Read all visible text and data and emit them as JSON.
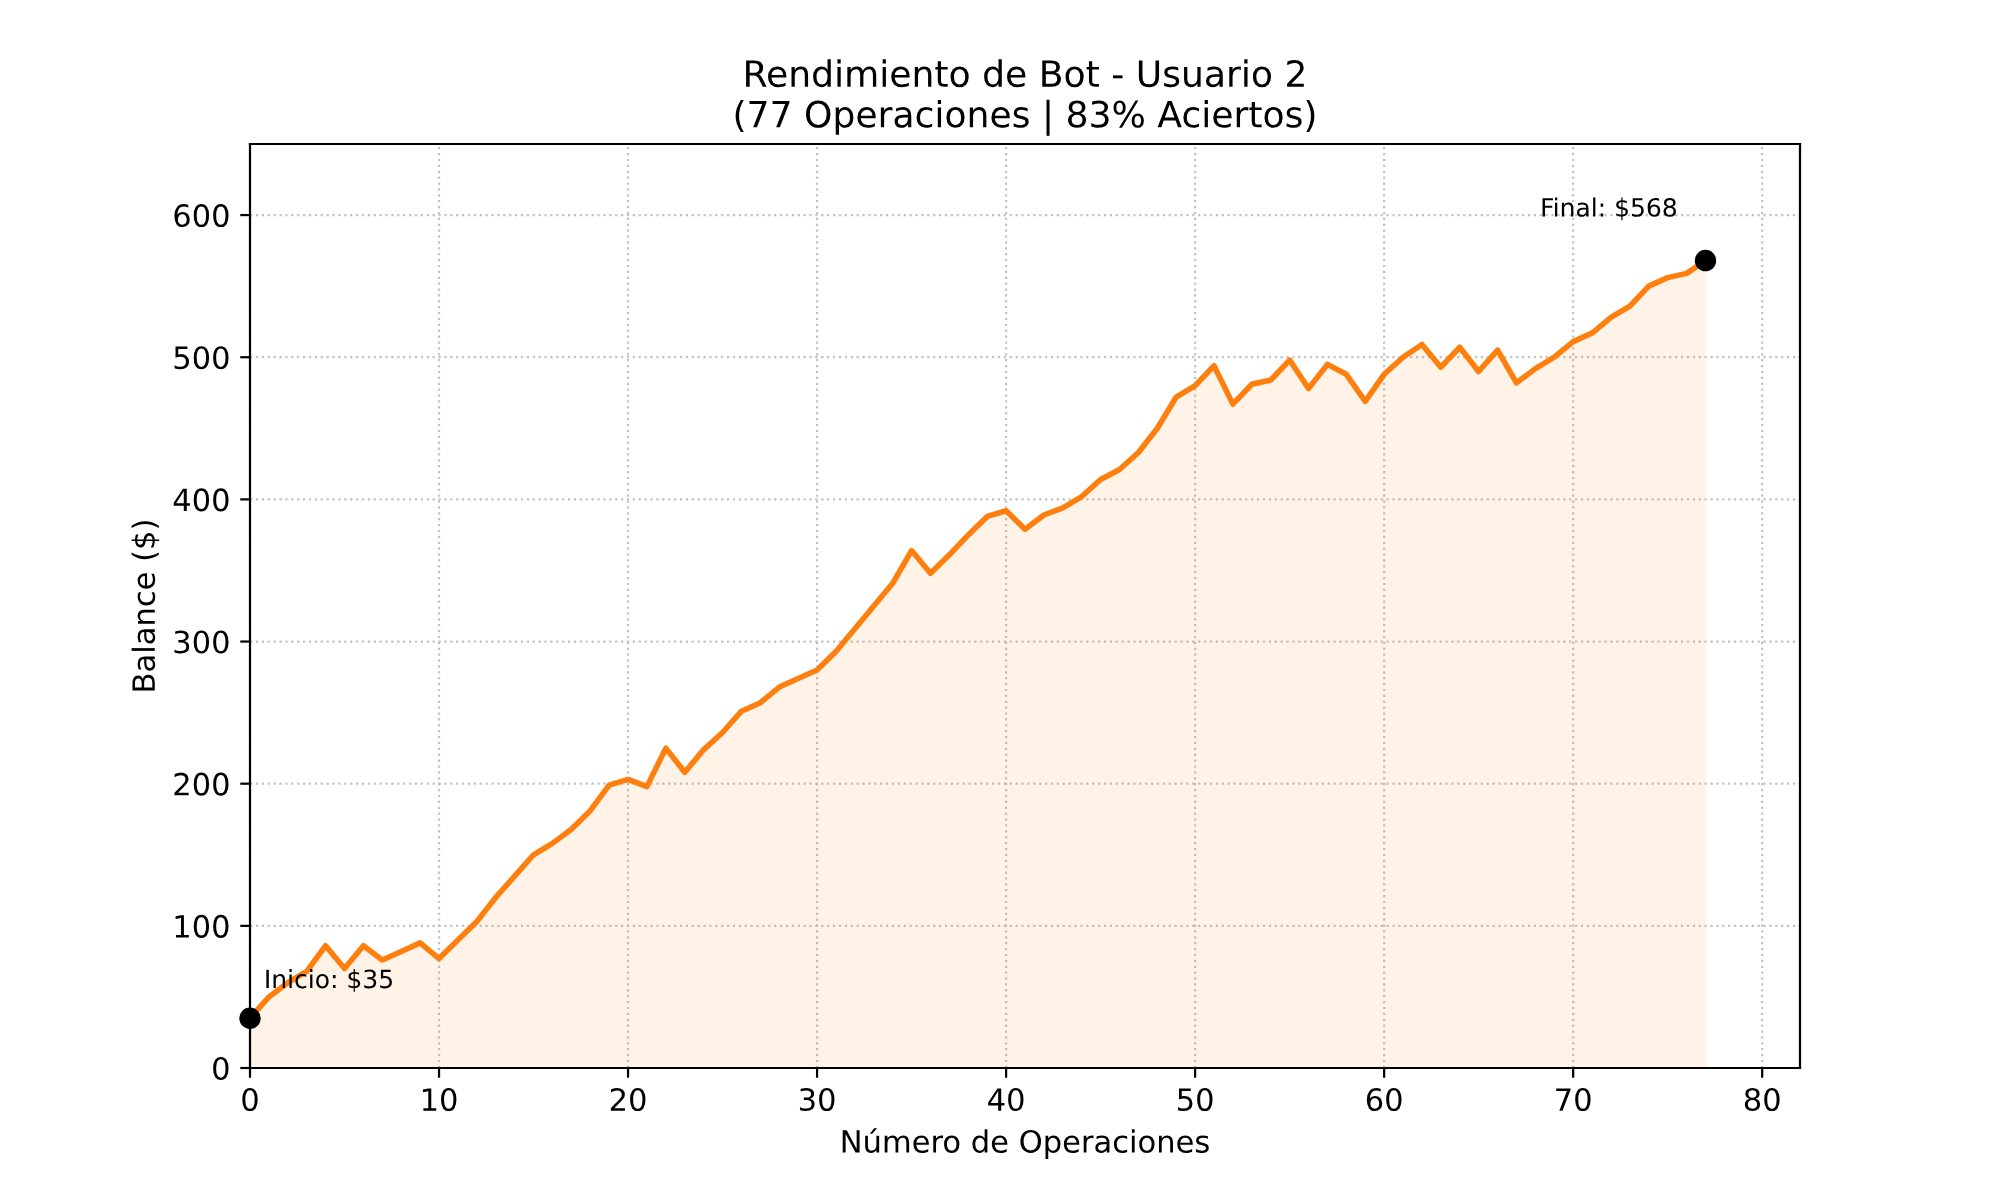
{
  "chart_data": {
    "type": "area",
    "title": "Rendimiento de Bot - Usuario 2\n(77 Operaciones | 83% Aciertos)",
    "xlabel": "Número de Operaciones",
    "ylabel": "Balance ($)",
    "xlim": [
      0,
      82
    ],
    "ylim": [
      0,
      650
    ],
    "xticks": [
      0,
      10,
      20,
      30,
      40,
      50,
      60,
      70,
      80
    ],
    "yticks": [
      0,
      100,
      200,
      300,
      400,
      500,
      600
    ],
    "grid": true,
    "series": [
      {
        "color": "#ff7f0e",
        "x": [
          0,
          1,
          2,
          3,
          4,
          5,
          6,
          7,
          8,
          9,
          10,
          11,
          12,
          13,
          14,
          15,
          16,
          17,
          18,
          19,
          20,
          21,
          22,
          23,
          24,
          25,
          26,
          27,
          28,
          29,
          30,
          31,
          32,
          33,
          34,
          35,
          36,
          37,
          38,
          39,
          40,
          41,
          42,
          43,
          44,
          45,
          46,
          47,
          48,
          49,
          50,
          51,
          52,
          53,
          54,
          55,
          56,
          57,
          58,
          59,
          60,
          61,
          62,
          63,
          64,
          65,
          66,
          67,
          68,
          69,
          70,
          71,
          72,
          73,
          74,
          75,
          76,
          77
        ],
        "values": [
          35,
          50,
          60,
          68,
          86,
          70,
          86,
          76,
          82,
          88,
          77,
          90,
          103,
          120,
          135,
          150,
          158,
          168,
          181,
          199,
          203,
          198,
          225,
          208,
          224,
          236,
          251,
          257,
          268,
          274,
          280,
          293,
          309,
          325,
          341,
          364,
          348,
          361,
          375,
          388,
          392,
          379,
          389,
          394,
          402,
          414,
          421,
          433,
          450,
          472,
          480,
          494,
          467,
          481,
          484,
          498,
          478,
          495,
          488,
          469,
          488,
          500,
          509,
          493,
          507,
          490,
          505,
          482,
          492,
          500,
          511,
          517,
          528,
          536,
          550,
          556,
          559,
          568
        ]
      },
      {
        "type": "scatter",
        "color": "#000000",
        "x": [
          0,
          77
        ],
        "values": [
          35,
          568
        ]
      }
    ],
    "annotations": [
      {
        "text": "Inicio: $35",
        "x": 0,
        "y": 35
      },
      {
        "text": "Final: $568",
        "x": 77,
        "y": 568
      }
    ]
  }
}
